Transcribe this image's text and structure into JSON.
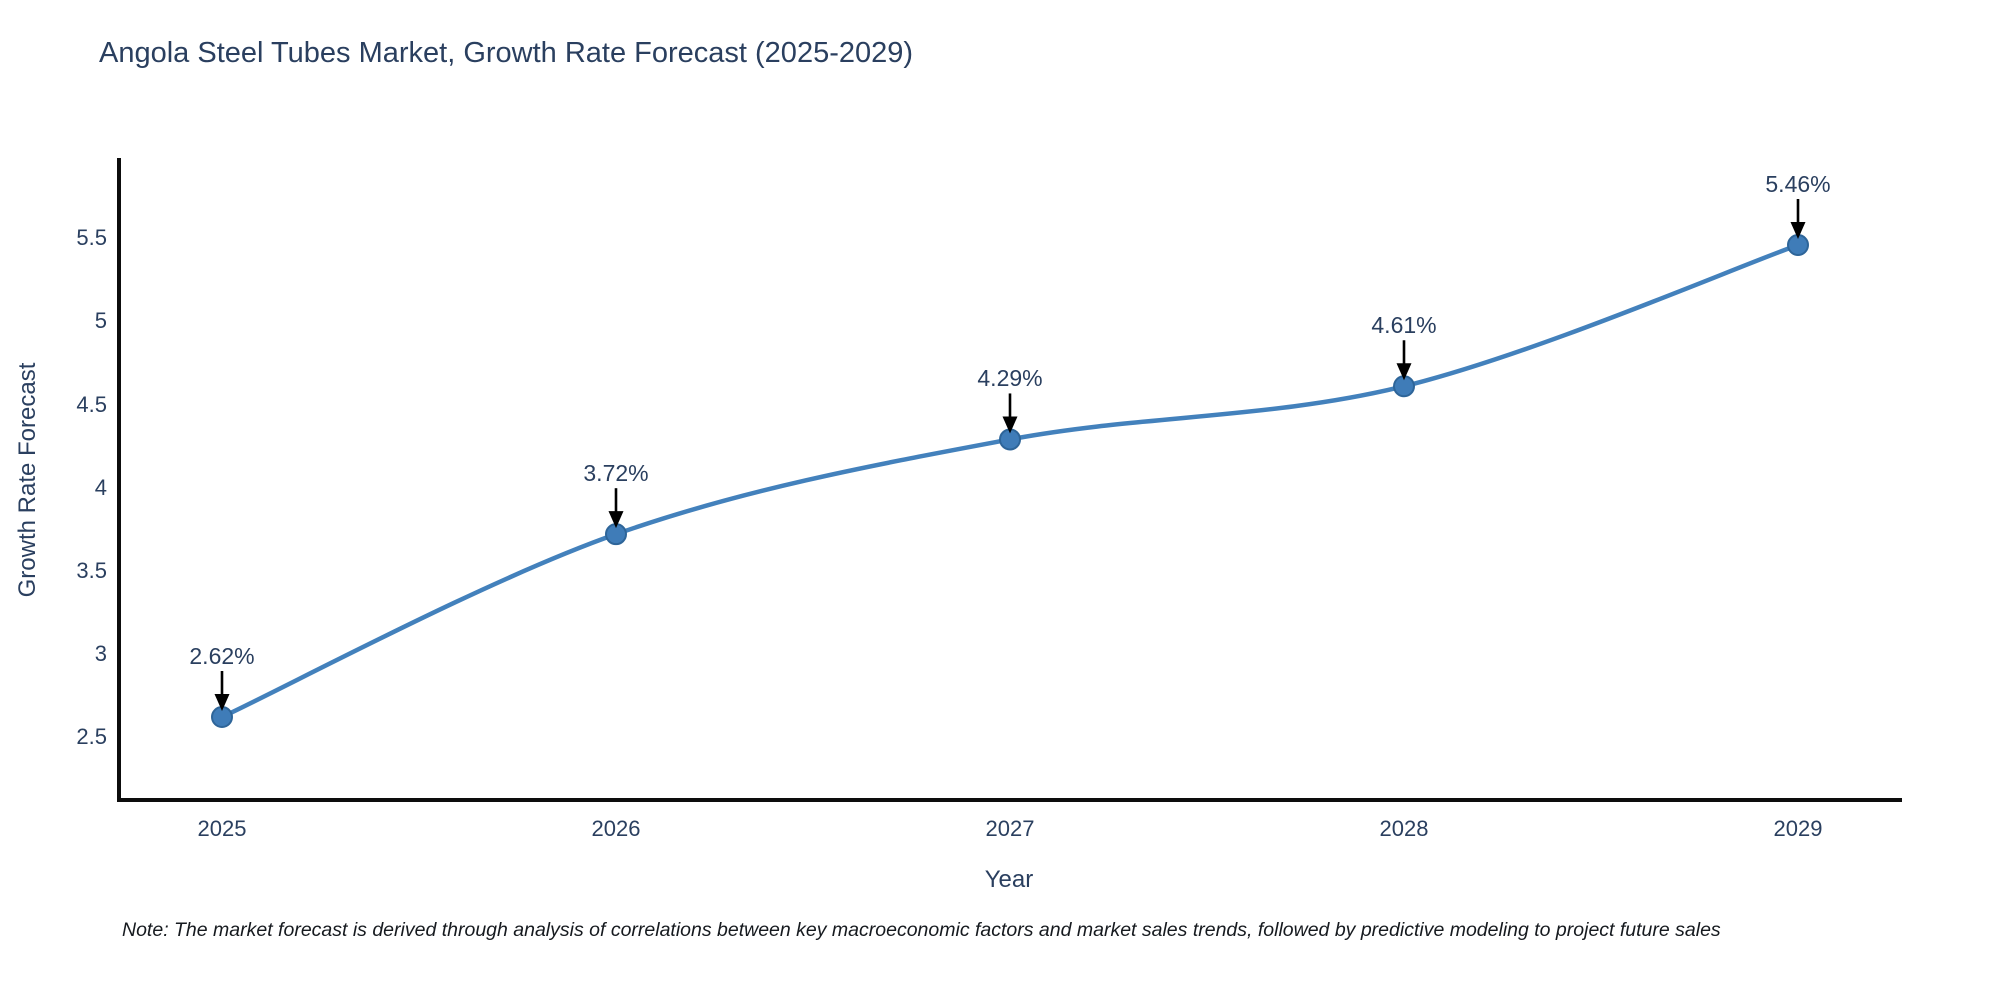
{
  "title": "Angola Steel Tubes Market, Growth Rate Forecast (2025-2029)",
  "note": "Note: The market forecast is derived through analysis of correlations between key macroeconomic factors and market sales trends, followed by predictive modeling to project future sales",
  "chart_data": {
    "type": "line",
    "title": "Angola Steel Tubes Market, Growth Rate Forecast (2025-2029)",
    "xlabel": "Year",
    "ylabel": "Growth Rate Forecast",
    "categories": [
      "2025",
      "2026",
      "2027",
      "2028",
      "2029"
    ],
    "values": [
      2.62,
      3.72,
      4.29,
      4.61,
      5.46
    ],
    "point_labels": [
      "2.62%",
      "3.72%",
      "4.29%",
      "4.61%",
      "5.46%"
    ],
    "ytick_labels": [
      "2.5",
      "3",
      "3.5",
      "4",
      "4.5",
      "5",
      "5.5"
    ],
    "ytick_values": [
      2.5,
      3.0,
      3.5,
      4.0,
      4.5,
      5.0,
      5.5
    ],
    "ylim": [
      2.1,
      6.0
    ],
    "curve": "spline",
    "grid": false,
    "legend": false,
    "annotations_have_arrows": true,
    "colors": {
      "line": "#4381bc",
      "marker_fill": "#3f7cb8",
      "marker_edge": "#2e6599",
      "axis_line": "#0d0d0d",
      "arrow": "#000000",
      "text": "#2a3f5f"
    }
  }
}
